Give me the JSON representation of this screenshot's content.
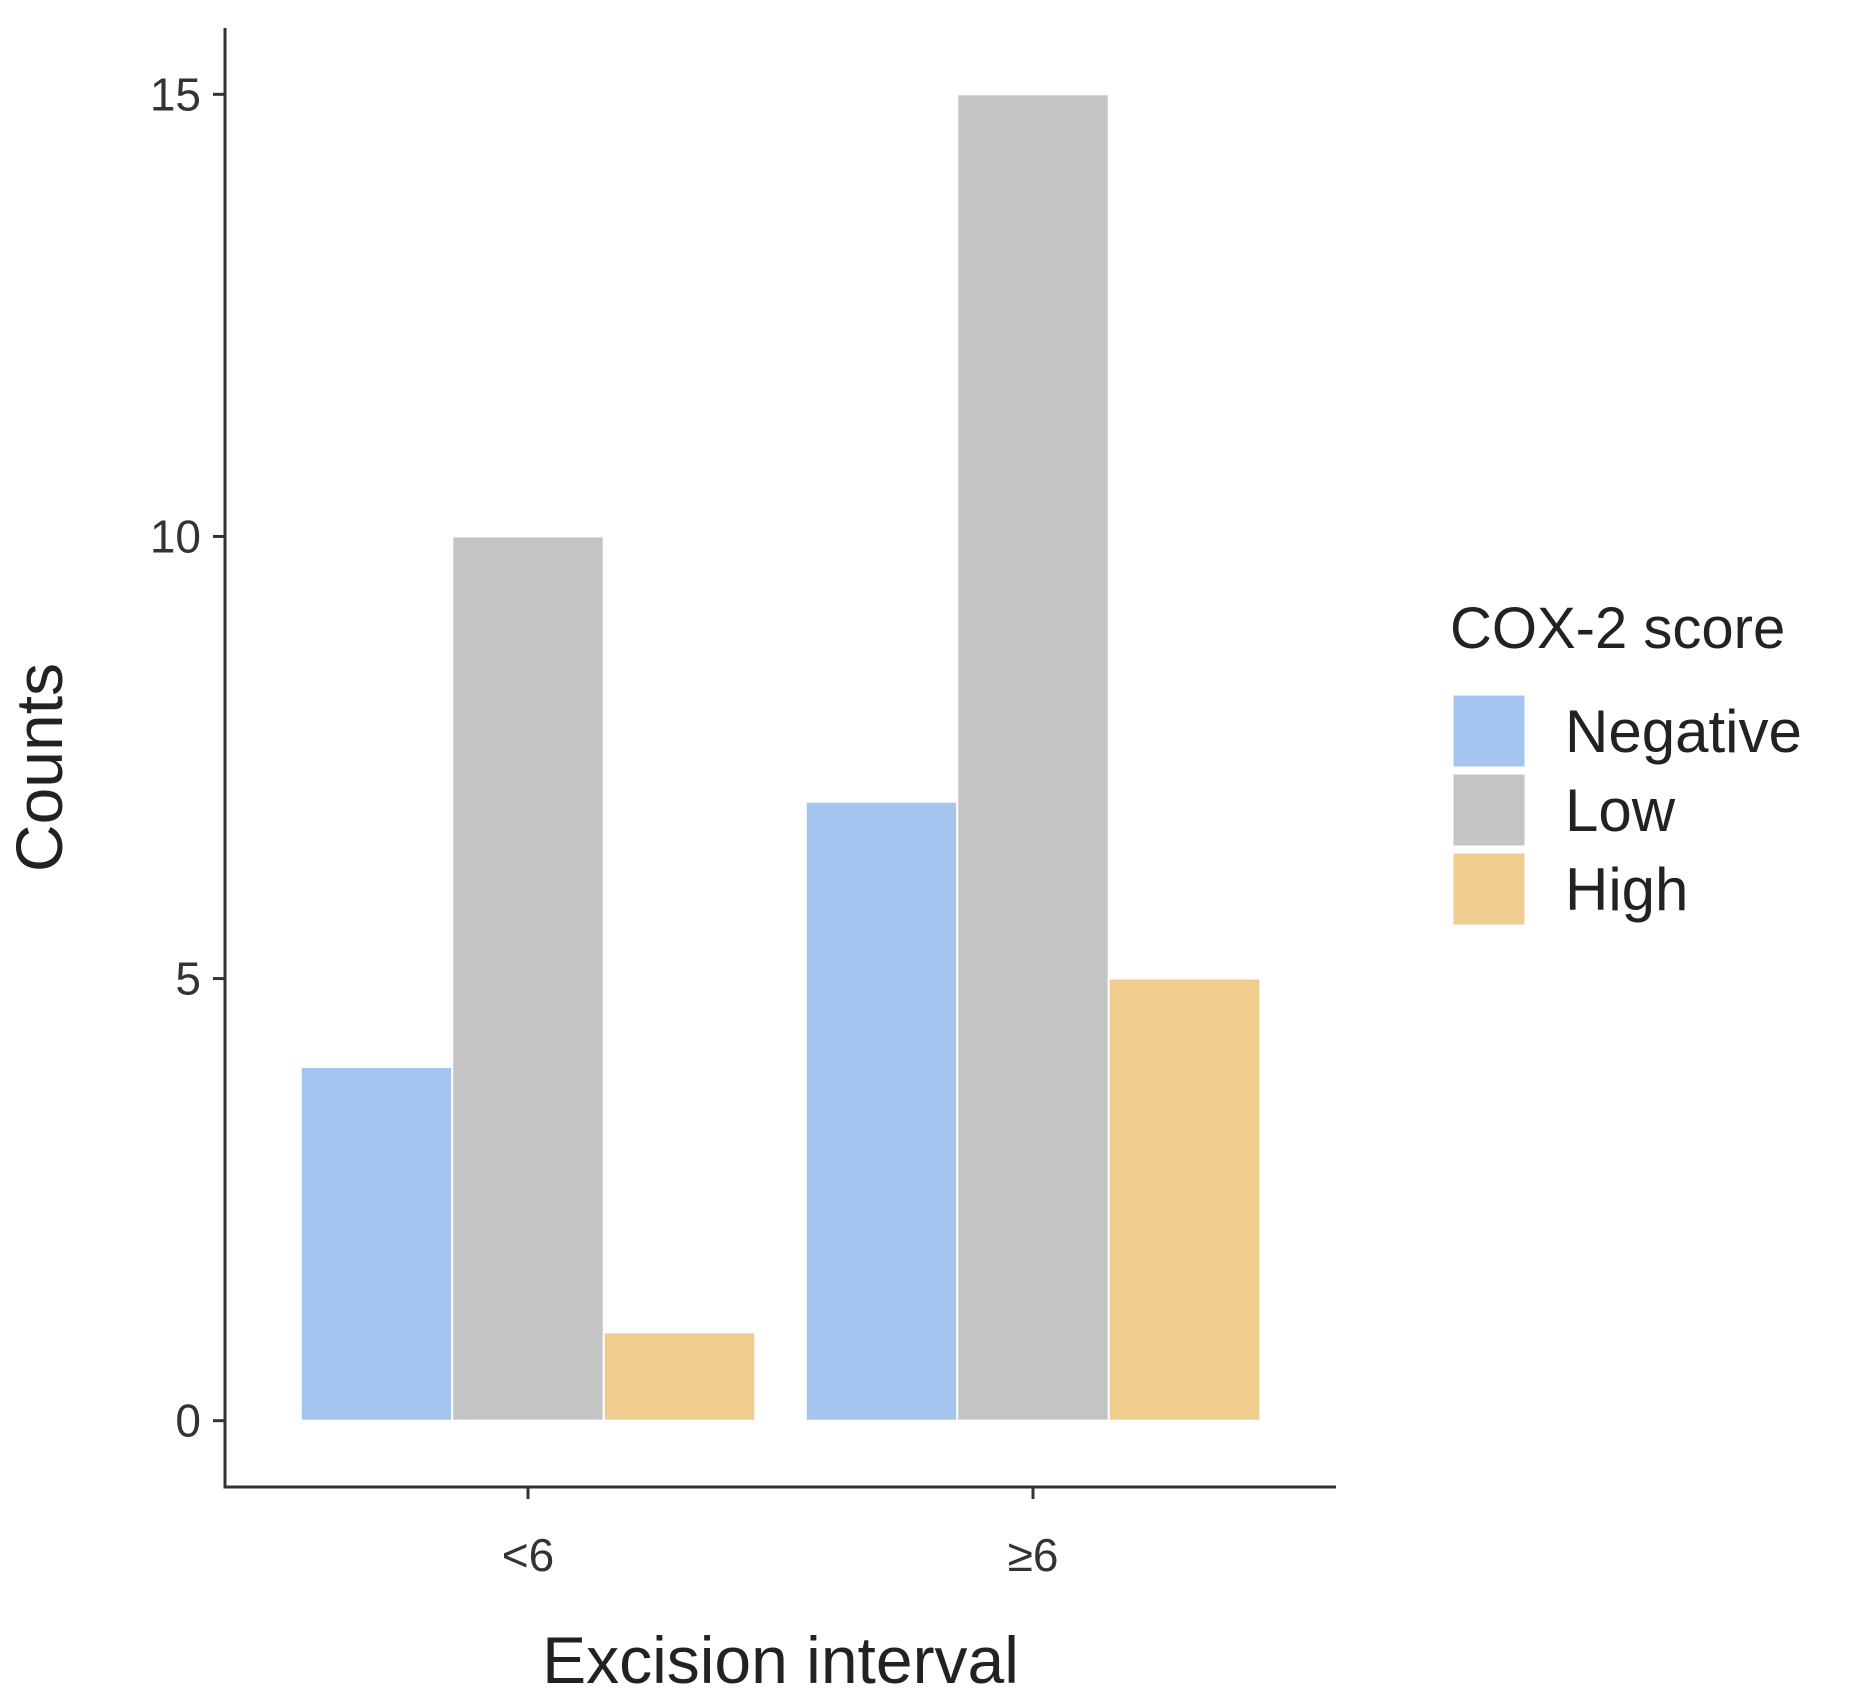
{
  "chart_data": {
    "type": "bar",
    "title": "",
    "xlabel": "Excision interval",
    "ylabel": "Counts",
    "categories": [
      "<6",
      "≥6"
    ],
    "series": [
      {
        "name": "Negative",
        "values": [
          4,
          7
        ],
        "color": "#A6C4F0"
      },
      {
        "name": "Low",
        "values": [
          10,
          15
        ],
        "color": "#C4C4C4"
      },
      {
        "name": "High",
        "values": [
          1,
          5
        ],
        "color": "#EFCD8E"
      }
    ],
    "ylim": [
      -0.75,
      15.75
    ],
    "yticks": [
      0,
      5,
      10,
      15
    ],
    "ytick_labels": [
      "0",
      "5",
      "10",
      "15"
    ],
    "grid": false,
    "legend": {
      "title": "COX-2 score",
      "placement": "right"
    }
  }
}
